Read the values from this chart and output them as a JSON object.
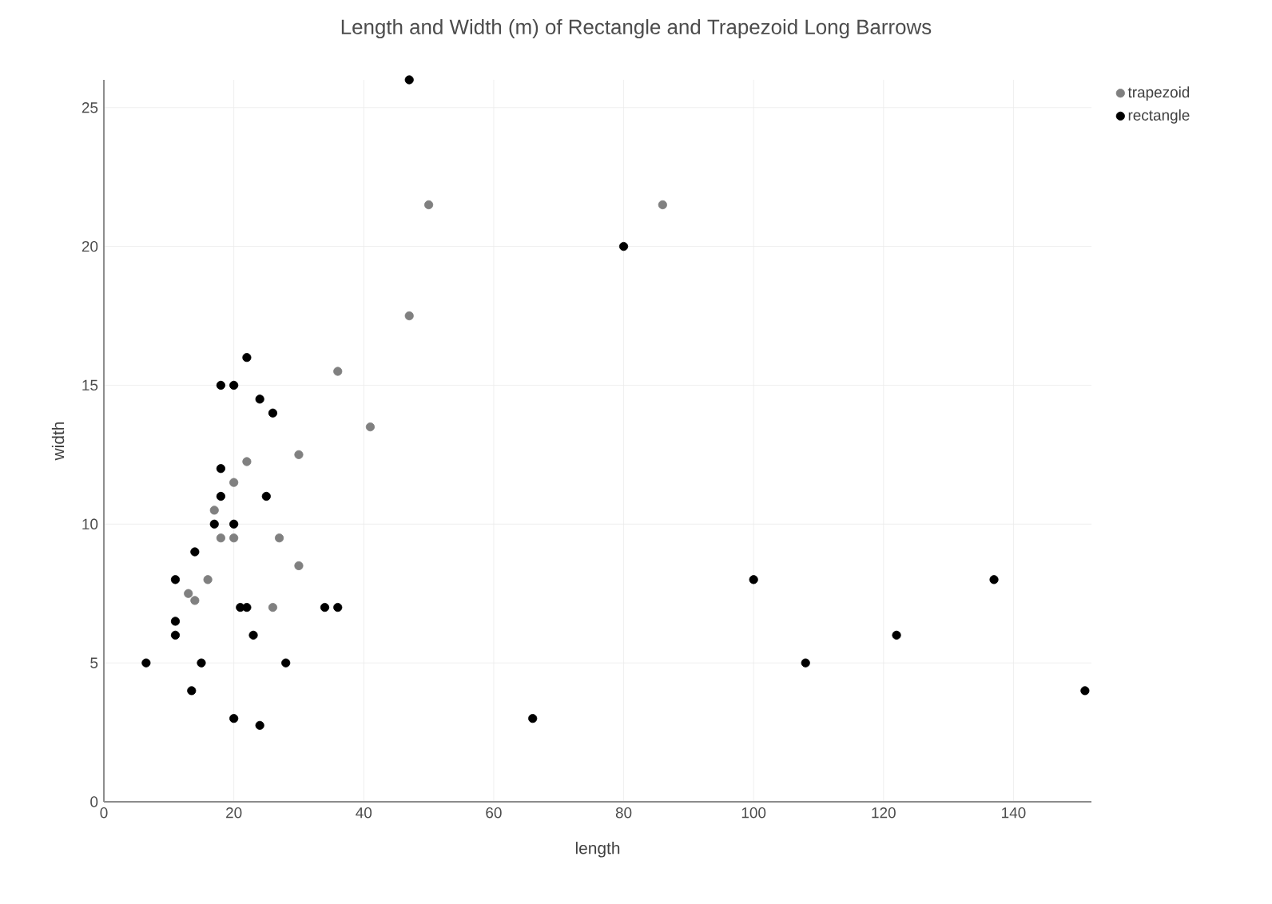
{
  "chart_data": {
    "type": "scatter",
    "title": "Length and Width (m) of Rectangle and Trapezoid Long Barrows",
    "xlabel": "length",
    "ylabel": "width",
    "xlim": [
      0,
      152
    ],
    "ylim": [
      0,
      26
    ],
    "xticks": [
      0,
      20,
      40,
      60,
      80,
      100,
      120,
      140
    ],
    "yticks": [
      0,
      5,
      10,
      15,
      20,
      25
    ],
    "grid": true,
    "legend": "top right",
    "marker": "circle",
    "series": [
      {
        "name": "trapezoid",
        "color": "#808080",
        "x": [
          36,
          41,
          30,
          22,
          20,
          17,
          18,
          20,
          27,
          30,
          16,
          13,
          14,
          26,
          50,
          86,
          47
        ],
        "values": [
          15.5,
          13.5,
          12.5,
          12.25,
          11.5,
          10.5,
          9.5,
          9.5,
          9.5,
          8.5,
          8,
          7.5,
          7.25,
          7,
          21.5,
          21.5,
          17.5
        ]
      },
      {
        "name": "rectangle",
        "color": "#000000",
        "x": [
          22,
          18,
          20,
          24,
          26,
          18,
          18,
          25,
          17,
          20,
          14,
          11,
          21,
          22,
          34,
          36,
          11,
          11,
          23,
          6.5,
          15,
          28,
          13.5,
          20,
          24,
          47,
          80,
          66,
          100,
          108,
          122,
          137,
          151
        ],
        "values": [
          16,
          15,
          15,
          14.5,
          14,
          12,
          11,
          11,
          10,
          10,
          9,
          8,
          7,
          7,
          7,
          7,
          6.5,
          6,
          6,
          5,
          5,
          5,
          4,
          3,
          2.75,
          26,
          20,
          3,
          8,
          5,
          6,
          8,
          4
        ]
      }
    ]
  }
}
